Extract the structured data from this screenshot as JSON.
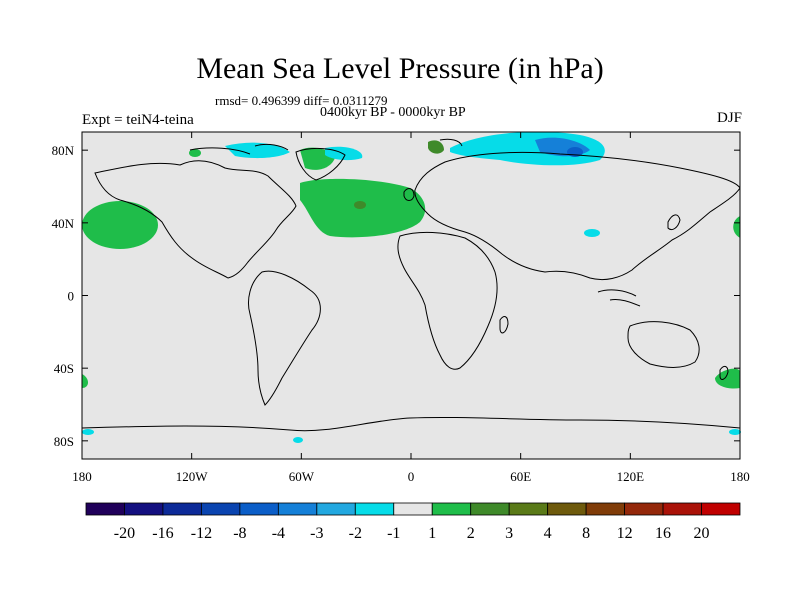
{
  "title": "Mean Sea Level Pressure (in hPa)",
  "stats": "rmsd= 0.496399  diff= 0.0311279",
  "period": "0400kyr BP - 0000kyr BP",
  "experiment": "Expt = teiN4-teina",
  "season": "DJF",
  "axes": {
    "x_ticks": [
      "180",
      "120W",
      "60W",
      "0",
      "60E",
      "120E",
      "180"
    ],
    "y_ticks": [
      "80N",
      "40N",
      "0",
      "40S",
      "80S"
    ]
  },
  "colorbar": {
    "colors": [
      "#20005a",
      "#141080",
      "#0c2a98",
      "#0a44b0",
      "#0b5ec8",
      "#1580d8",
      "#22a8e0",
      "#06dce8",
      "#e6e6e6",
      "#1fbd4a",
      "#3f8a2a",
      "#5a7a18",
      "#6e5a0c",
      "#803c08",
      "#94280a",
      "#aa1208",
      "#c00000"
    ],
    "labels": [
      "-20",
      "-16",
      "-12",
      "-8",
      "-4",
      "-3",
      "-2",
      "-1",
      "1",
      "2",
      "3",
      "4",
      "8",
      "12",
      "16",
      "20"
    ]
  },
  "background_color": "#e6e6e6"
}
